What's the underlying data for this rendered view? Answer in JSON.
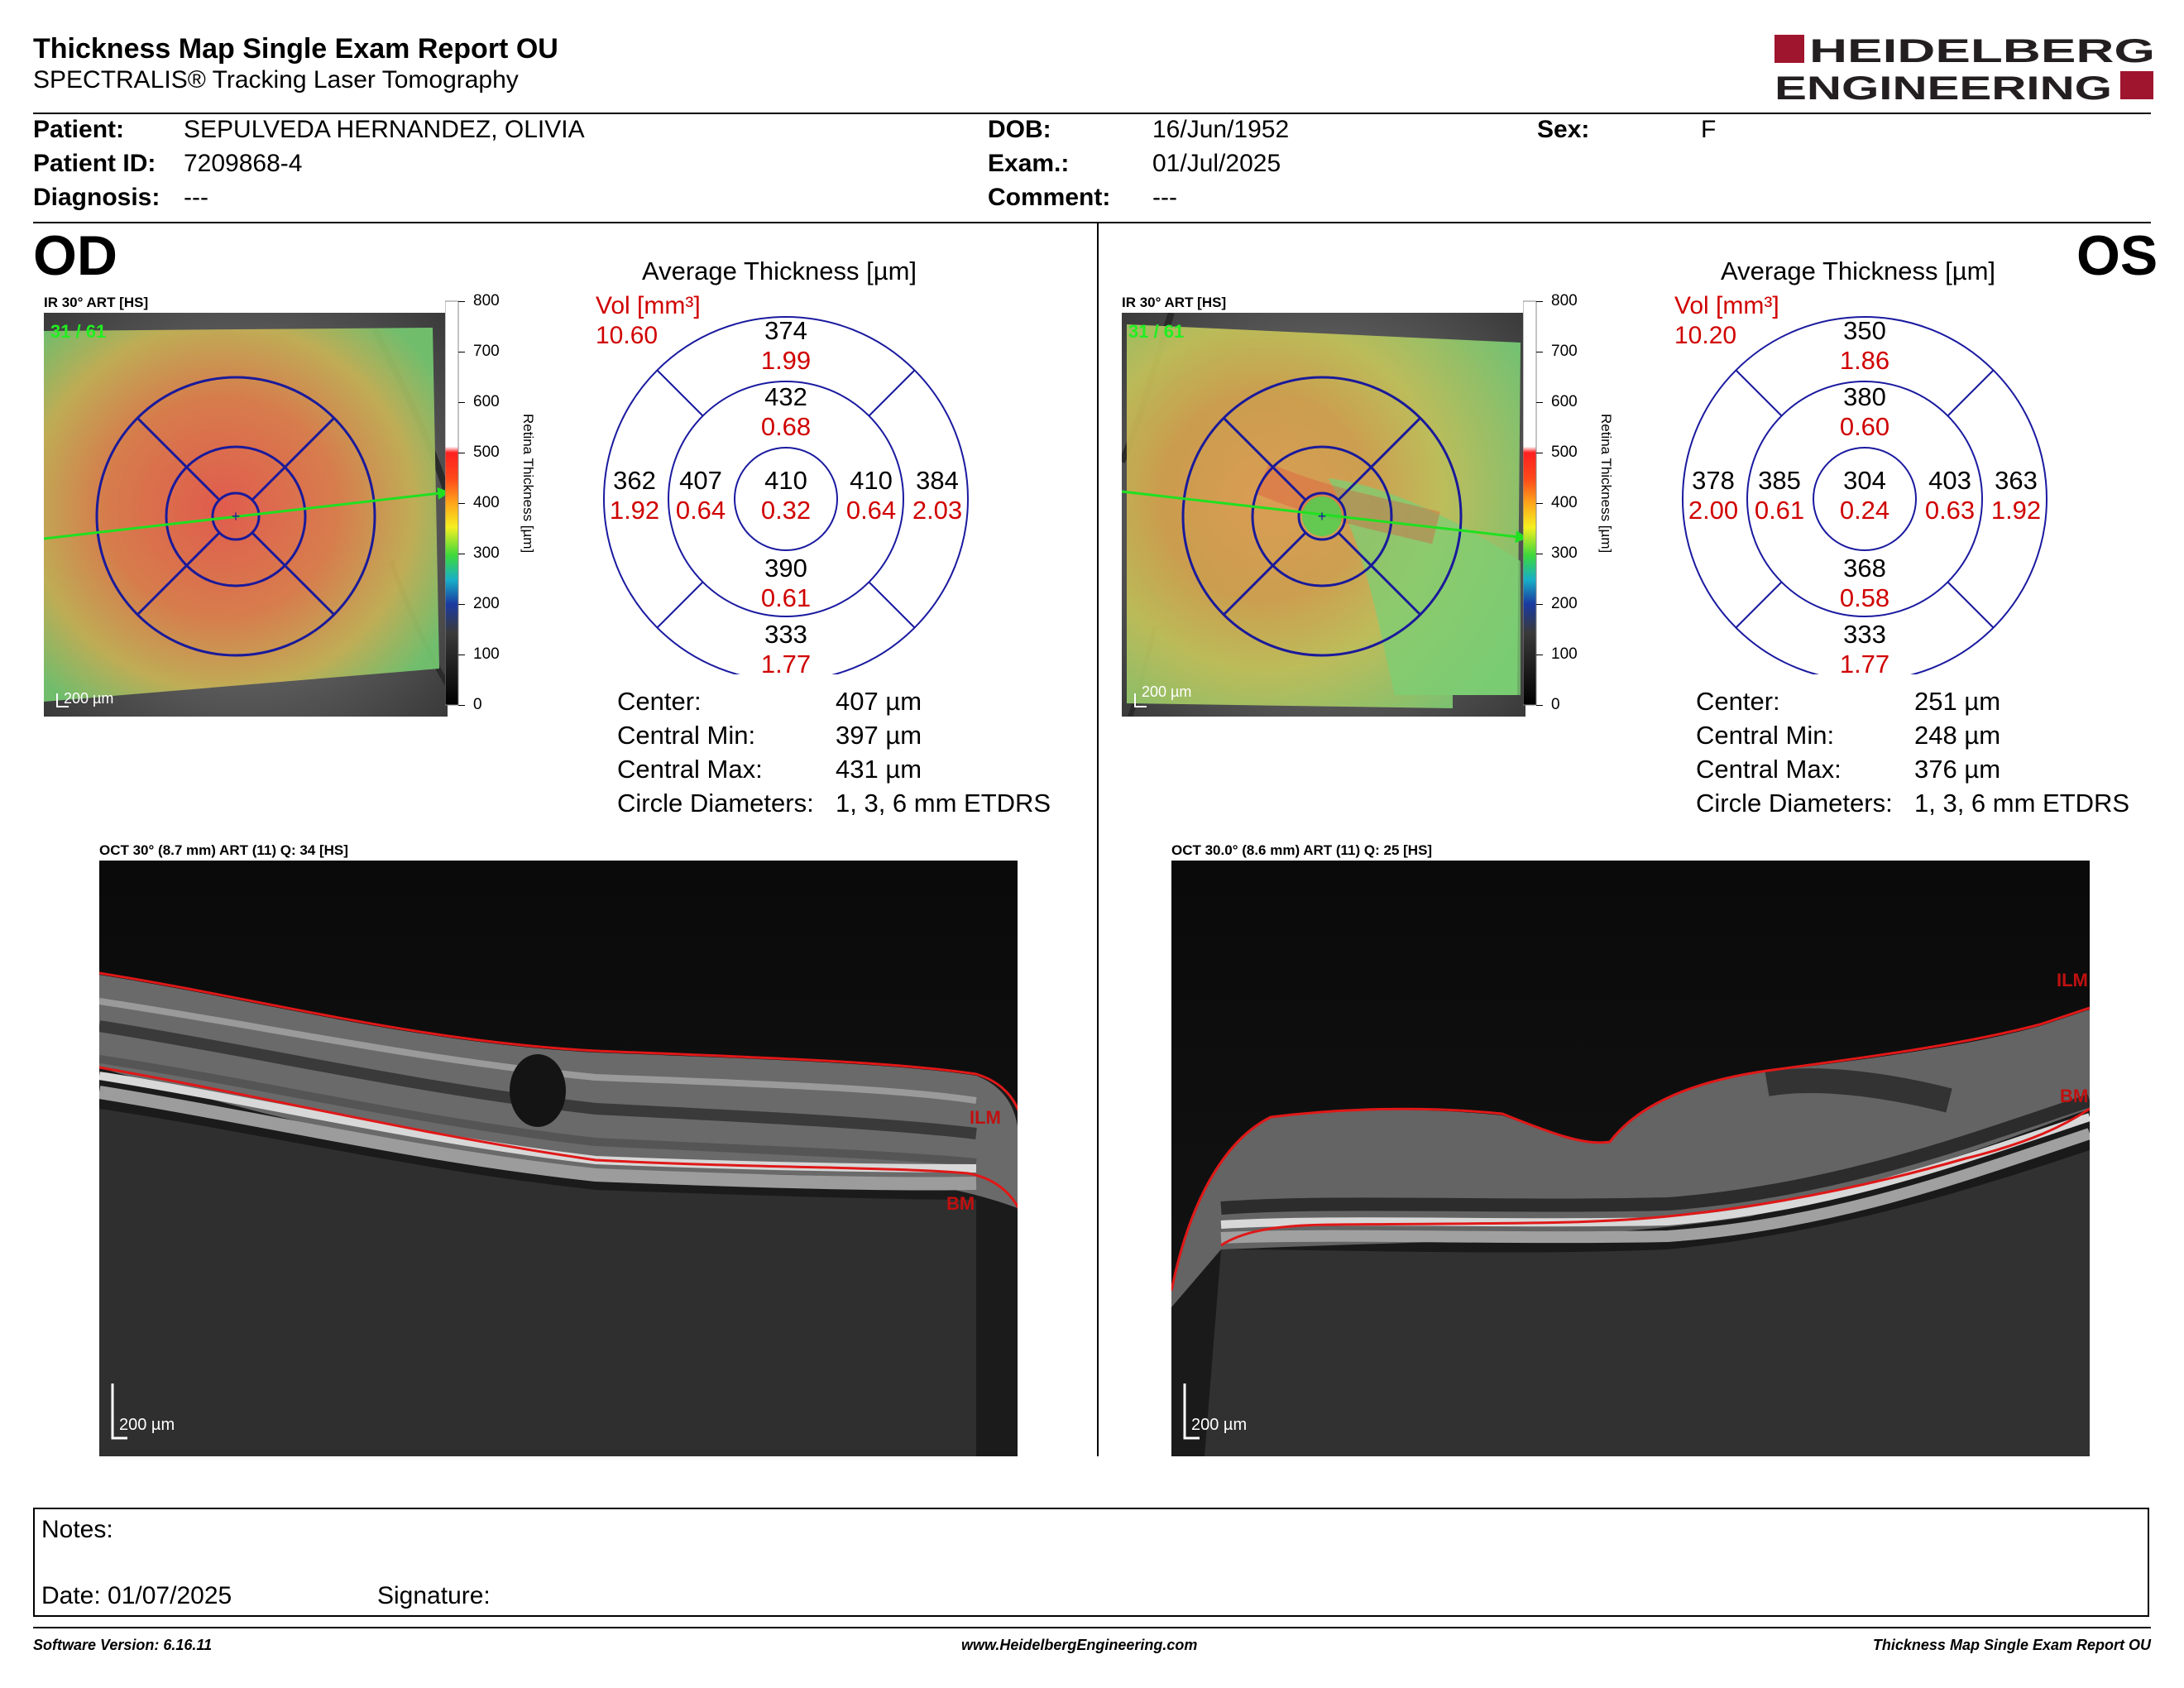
{
  "header": {
    "title": "Thickness Map Single Exam Report OU",
    "subtitle": "SPECTRALIS® Tracking Laser Tomography",
    "logo_line1": "HEIDELBERG",
    "logo_line2": "ENGINEERING"
  },
  "patient": {
    "patient_label": "Patient:",
    "patient_value": "SEPULVEDA HERNANDEZ, OLIVIA",
    "id_label": "Patient ID:",
    "id_value": "7209868-4",
    "diagnosis_label": "Diagnosis:",
    "diagnosis_value": "---",
    "dob_label": "DOB:",
    "dob_value": "16/Jun/1952",
    "exam_label": "Exam.:",
    "exam_value": "01/Jul/2025",
    "comment_label": "Comment:",
    "comment_value": "---",
    "sex_label": "Sex:",
    "sex_value": "F"
  },
  "od": {
    "eye": "OD",
    "ir_caption": "IR 30° ART [HS]",
    "frame_count": "31 / 61",
    "scale": "200 µm",
    "colorbar_ticks": [
      "800",
      "700",
      "600",
      "500",
      "400",
      "300",
      "200",
      "100",
      "0"
    ],
    "colorbar_label": "Retina Thickness [µm]",
    "avg_title": "Average Thickness [µm]",
    "vol_label": "Vol [mm³]",
    "vol_total": "10.60",
    "sectors": {
      "center_t": "410",
      "center_v": "0.32",
      "inner_sup_t": "432",
      "inner_sup_v": "0.68",
      "inner_inf_t": "390",
      "inner_inf_v": "0.61",
      "inner_left_t": "407",
      "inner_left_v": "0.64",
      "inner_right_t": "410",
      "inner_right_v": "0.64",
      "outer_sup_t": "374",
      "outer_sup_v": "1.99",
      "outer_inf_t": "333",
      "outer_inf_v": "1.77",
      "outer_left_t": "362",
      "outer_left_v": "1.92",
      "outer_right_t": "384",
      "outer_right_v": "2.03"
    },
    "stats": [
      {
        "label": "Center:",
        "value": "407 µm"
      },
      {
        "label": "Central Min:",
        "value": "397 µm"
      },
      {
        "label": "Central Max:",
        "value": "431 µm"
      },
      {
        "label": "Circle Diameters:",
        "value": "1, 3, 6 mm ETDRS"
      }
    ],
    "oct_caption": "OCT 30° (8.7 mm) ART (11) Q: 34 [HS]",
    "oct_scale": "200 µm",
    "layer_top": "ILM",
    "layer_bottom": "BM"
  },
  "os": {
    "eye": "OS",
    "ir_caption": "IR 30° ART [HS]",
    "frame_count": "31 / 61",
    "scale": "200 µm",
    "colorbar_ticks": [
      "800",
      "700",
      "600",
      "500",
      "400",
      "300",
      "200",
      "100",
      "0"
    ],
    "colorbar_label": "Retina Thickness [µm]",
    "avg_title": "Average Thickness [µm]",
    "vol_label": "Vol [mm³]",
    "vol_total": "10.20",
    "sectors": {
      "center_t": "304",
      "center_v": "0.24",
      "inner_sup_t": "380",
      "inner_sup_v": "0.60",
      "inner_inf_t": "368",
      "inner_inf_v": "0.58",
      "inner_left_t": "385",
      "inner_left_v": "0.61",
      "inner_right_t": "403",
      "inner_right_v": "0.63",
      "outer_sup_t": "350",
      "outer_sup_v": "1.86",
      "outer_inf_t": "333",
      "outer_inf_v": "1.77",
      "outer_left_t": "378",
      "outer_left_v": "2.00",
      "outer_right_t": "363",
      "outer_right_v": "1.92"
    },
    "stats": [
      {
        "label": "Center:",
        "value": "251 µm"
      },
      {
        "label": "Central Min:",
        "value": "248 µm"
      },
      {
        "label": "Central Max:",
        "value": "376 µm"
      },
      {
        "label": "Circle Diameters:",
        "value": "1, 3, 6 mm ETDRS"
      }
    ],
    "oct_caption": "OCT 30.0° (8.6 mm) ART (11) Q: 25 [HS]",
    "oct_scale": "200 µm",
    "layer_top": "ILM",
    "layer_bottom": "BM"
  },
  "notes": {
    "notes_label": "Notes:",
    "date_label": "Date: 01/07/2025",
    "signature_label": "Signature:"
  },
  "footer": {
    "software": "Software Version: 6.16.11",
    "website": "www.HeidelbergEngineering.com",
    "report_name": "Thickness Map Single Exam Report OU"
  }
}
